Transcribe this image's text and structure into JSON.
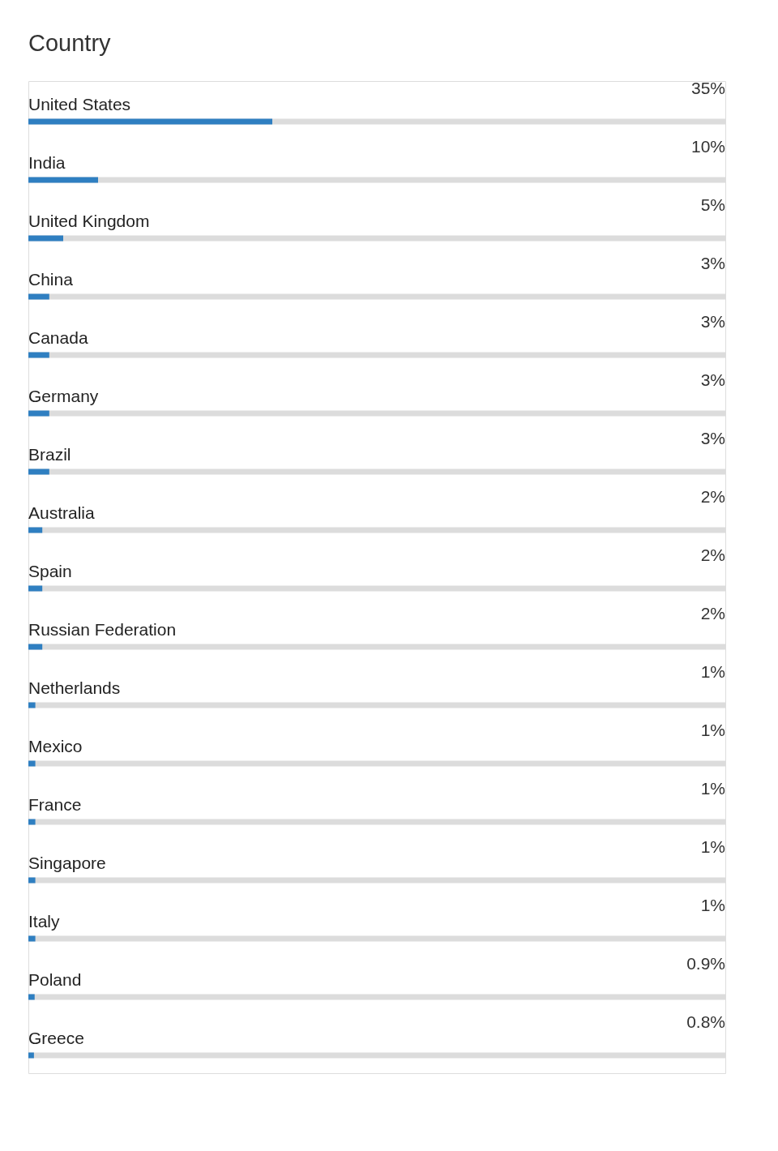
{
  "chart_data": {
    "type": "bar",
    "orientation": "horizontal",
    "title": "Country",
    "categories": [
      "United States",
      "India",
      "United Kingdom",
      "China",
      "Canada",
      "Germany",
      "Brazil",
      "Australia",
      "Spain",
      "Russian Federation",
      "Netherlands",
      "Mexico",
      "France",
      "Singapore",
      "Italy",
      "Poland",
      "Greece"
    ],
    "values": [
      35,
      10,
      5,
      3,
      3,
      3,
      3,
      2,
      2,
      2,
      1,
      1,
      1,
      1,
      1,
      0.9,
      0.8
    ],
    "value_labels": [
      "35%",
      "10%",
      "5%",
      "3%",
      "3%",
      "3%",
      "3%",
      "2%",
      "2%",
      "2%",
      "1%",
      "1%",
      "1%",
      "1%",
      "1%",
      "0.9%",
      "0.8%"
    ],
    "color": "#2f7fc1",
    "xlim": [
      0,
      100
    ],
    "tick_labels": false
  }
}
